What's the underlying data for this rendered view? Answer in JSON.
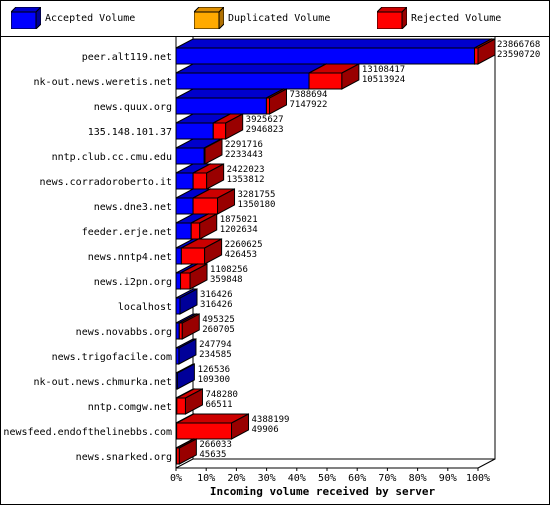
{
  "legend": [
    {
      "label": "Accepted Volume",
      "color": "#0000ff"
    },
    {
      "label": "Duplicated Volume",
      "color": "#ffaa00"
    },
    {
      "label": "Rejected Volume",
      "color": "#ff0000"
    }
  ],
  "chart_data": {
    "type": "bar",
    "orientation": "horizontal",
    "stacked": false,
    "xlabel": "Incoming volume received by server",
    "xlim": [
      0,
      100
    ],
    "x_ticks": [
      "0%",
      "10%",
      "20%",
      "30%",
      "40%",
      "50%",
      "60%",
      "70%",
      "80%",
      "90%",
      "100%"
    ],
    "grid": false,
    "legend_position": "top",
    "categories": [
      "peer.alt119.net",
      "nk-out.news.weretis.net",
      "news.quux.org",
      "135.148.101.37",
      "nntp.club.cc.cmu.edu",
      "news.corradoroberto.it",
      "news.dne3.net",
      "feeder.erje.net",
      "news.nntp4.net",
      "news.i2pn.org",
      "localhost",
      "news.novabbs.org",
      "news.trigofacile.com",
      "nk-out.news.chmurka.net",
      "nntp.comgw.net",
      "newsfeed.endofthelinebbs.com",
      "news.snarked.org"
    ],
    "series": [
      {
        "name": "Accepted Volume",
        "color": "#0000ff",
        "values": [
          23590720,
          10513924,
          7147922,
          2946823,
          2233443,
          1353812,
          1350180,
          1202634,
          426453,
          359848,
          316426,
          260705,
          234585,
          109300,
          66511,
          49906,
          45635
        ]
      },
      {
        "name": "Rejected Volume",
        "color": "#ff0000",
        "values": [
          275048,
          2594493,
          240772,
          978804,
          58273,
          1068211,
          1931575,
          672387,
          1834172,
          748408,
          0,
          234620,
          13209,
          17236,
          681769,
          4338293,
          220398
        ]
      }
    ],
    "total_labels": [
      "23866768",
      "13108417",
      "7388694",
      "3925627",
      "2291716",
      "2422023",
      "3281755",
      "1875021",
      "2260625",
      "1108256",
      "316426",
      "495325",
      "247794",
      "126536",
      "748280",
      "4388199",
      "266033"
    ],
    "accepted_labels": [
      "23590720",
      "10513924",
      "7147922",
      "2946823",
      "2233443",
      "1353812",
      "1350180",
      "1202634",
      "426453",
      "359848",
      "316426",
      "260705",
      "234585",
      "109300",
      "66511",
      "49906",
      "45635"
    ]
  }
}
